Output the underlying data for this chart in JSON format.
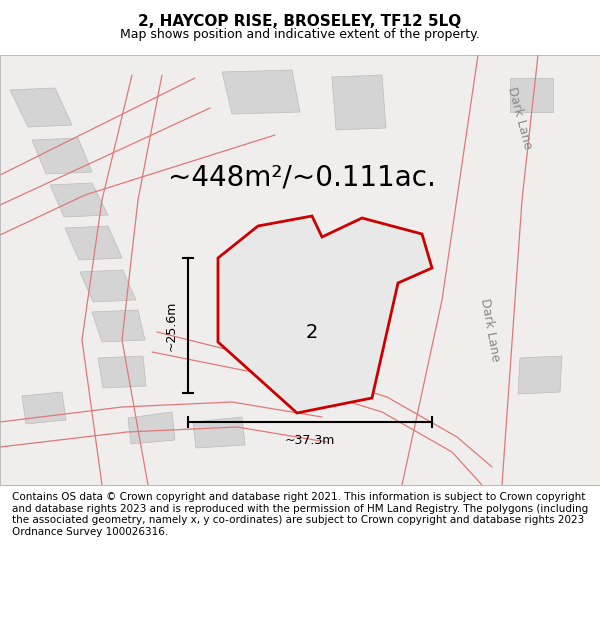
{
  "title": "2, HAYCOP RISE, BROSELEY, TF12 5LQ",
  "subtitle": "Map shows position and indicative extent of the property.",
  "footer": "Contains OS data © Crown copyright and database right 2021. This information is subject to Crown copyright and database rights 2023 and is reproduced with the permission of HM Land Registry. The polygons (including the associated geometry, namely x, y co-ordinates) are subject to Crown copyright and database rights 2023 Ordnance Survey 100026316.",
  "area_text": "~448m²/~0.111ac.",
  "dim_width": "~37.3m",
  "dim_height": "~25.6m",
  "plot_label": "2",
  "plot_color": "#cc0000",
  "title_fontsize": 11,
  "subtitle_fontsize": 9,
  "footer_fontsize": 7.5,
  "area_fontsize": 20,
  "label_fontsize": 14,
  "road_label_fontsize": 9,
  "header_bg": "#ffffff",
  "footer_bg": "#ffffff"
}
